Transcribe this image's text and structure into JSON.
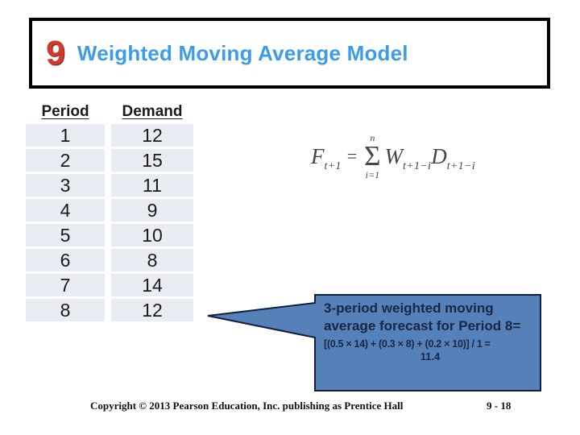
{
  "slide_number": "9",
  "title": "Weighted Moving Average Model",
  "table": {
    "headers": [
      "Period",
      "Demand"
    ],
    "rows": [
      [
        "1",
        "12"
      ],
      [
        "2",
        "15"
      ],
      [
        "3",
        "11"
      ],
      [
        "4",
        "9"
      ],
      [
        "5",
        "10"
      ],
      [
        "6",
        "8"
      ],
      [
        "7",
        "14"
      ],
      [
        "8",
        "12"
      ]
    ]
  },
  "formula": {
    "lhs": "F",
    "lhs_sub": "t+1",
    "eq": "=",
    "sigma_upper": "n",
    "sigma": "Σ",
    "sigma_lower": "i=1",
    "term1": "W",
    "term1_sub": "t+1−i",
    "term2": "D",
    "term2_sub": "t+1−i"
  },
  "callout": {
    "heading_line1": "3-period weighted moving",
    "heading_line2": "average forecast for Period  8=",
    "calc_line": "[(0.5 × 14) + (0.3 × 8) + (0.2 × 10)] / 1 =",
    "calc_result": "11.4"
  },
  "footer": {
    "copyright": "Copyright © 2013 Pearson Education, Inc. publishing as Prentice Hall",
    "page": "9 - 18"
  },
  "colors": {
    "title_blue": "#3d9ce8",
    "badge_red": "#d03a2a",
    "callout_fill": "#5681b8",
    "callout_border": "#10203d",
    "callout_ink": "#152647",
    "table_band": "#e9edf3",
    "ink": "#1a1a1a",
    "formula_ink": "#454545"
  }
}
